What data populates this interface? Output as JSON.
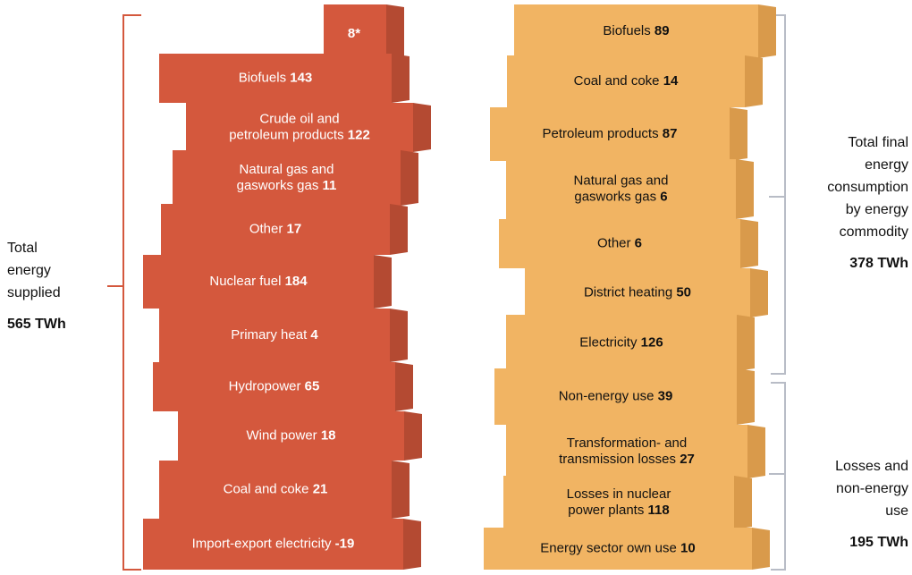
{
  "left": {
    "caption": {
      "lines": [
        "Total",
        "energy",
        "supplied"
      ],
      "total": "565 TWh"
    },
    "top_block": "8*",
    "items": [
      {
        "lines": [
          "Biofuels"
        ],
        "value": 143
      },
      {
        "lines": [
          "Crude oil and",
          "petroleum products"
        ],
        "value": 122
      },
      {
        "lines": [
          "Natural gas and",
          "gasworks gas"
        ],
        "value": 11
      },
      {
        "lines": [
          "Other"
        ],
        "value": 17
      },
      {
        "lines": [
          "Nuclear fuel"
        ],
        "value": 184
      },
      {
        "lines": [
          "Primary heat"
        ],
        "value": 4
      },
      {
        "lines": [
          "Hydropower"
        ],
        "value": 65
      },
      {
        "lines": [
          "Wind power"
        ],
        "value": 18
      },
      {
        "lines": [
          "Coal and coke"
        ],
        "value": 21
      },
      {
        "lines": [
          "Import-export electricity"
        ],
        "value": -19
      }
    ]
  },
  "right": {
    "captions": [
      {
        "lines": [
          "Total final",
          "energy",
          "consumption",
          "by energy",
          "commodity"
        ],
        "total": "378 TWh"
      },
      {
        "lines": [
          "Losses and",
          "non-energy",
          "use"
        ],
        "total": "195 TWh"
      }
    ],
    "items": [
      {
        "lines": [
          "Biofuels"
        ],
        "value": 89
      },
      {
        "lines": [
          "Coal and coke"
        ],
        "value": 14
      },
      {
        "lines": [
          "Petroleum products"
        ],
        "value": 87
      },
      {
        "lines": [
          "Natural gas and",
          "gasworks gas"
        ],
        "value": 6
      },
      {
        "lines": [
          "Other"
        ],
        "value": 6
      },
      {
        "lines": [
          "District heating"
        ],
        "value": 50
      },
      {
        "lines": [
          "Electricity"
        ],
        "value": 126
      },
      {
        "lines": [
          "Non-energy use"
        ],
        "value": 39
      },
      {
        "lines": [
          "Transformation- and",
          "transmission losses"
        ],
        "value": 27
      },
      {
        "lines": [
          "Losses in nuclear",
          "power plants"
        ],
        "value": 118
      },
      {
        "lines": [
          "Energy sector own use"
        ],
        "value": 10
      }
    ]
  }
}
